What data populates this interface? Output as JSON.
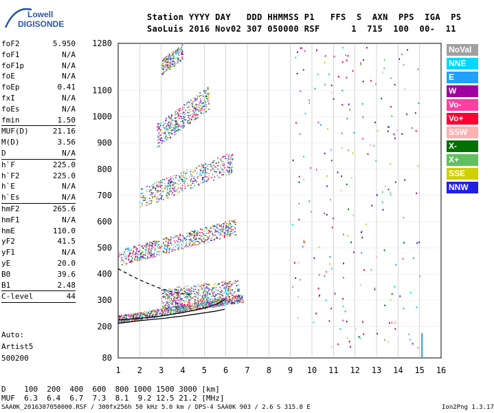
{
  "logo": {
    "top": "Lowell",
    "bottom": "DIGISONDE"
  },
  "header": {
    "row1": "Station YYYY DAY   DDD HHMMSS P1   FFS  S  AXN  PPS  IGA  PS",
    "row2": "SaoLuis 2016 Nov02 307 050000 RSF      1  715  100  00-  11"
  },
  "params_groups": [
    [
      {
        "name": "foF2",
        "value": "5.950"
      },
      {
        "name": "foF1",
        "value": "N/A"
      },
      {
        "name": "foF1p",
        "value": "N/A"
      },
      {
        "name": "foE",
        "value": "N/A"
      },
      {
        "name": "foEp",
        "value": "0.41"
      },
      {
        "name": "fxI",
        "value": "N/A"
      },
      {
        "name": "foEs",
        "value": "N/A"
      },
      {
        "name": "fmin",
        "value": "1.50"
      }
    ],
    [
      {
        "name": "MUF(D)",
        "value": "21.16"
      },
      {
        "name": "M(D)",
        "value": "3.56"
      },
      {
        "name": "D",
        "value": "N/A"
      }
    ],
    [
      {
        "name": "h`F",
        "value": "225.0"
      },
      {
        "name": "h`F2",
        "value": "225.0"
      },
      {
        "name": "h`E",
        "value": "N/A"
      },
      {
        "name": "h`Es",
        "value": "N/A"
      }
    ],
    [
      {
        "name": "hmF2",
        "value": "265.6"
      },
      {
        "name": "hmF1",
        "value": "N/A"
      },
      {
        "name": "hmE",
        "value": "110.0"
      },
      {
        "name": "yF2",
        "value": "41.5"
      },
      {
        "name": "yF1",
        "value": "N/A"
      },
      {
        "name": "yE",
        "value": "20.0"
      },
      {
        "name": "B0",
        "value": "39.6"
      },
      {
        "name": "B1",
        "value": "2.48"
      }
    ],
    [
      {
        "name": "C-level",
        "value": "44"
      }
    ]
  ],
  "auto": {
    "line1": "Auto:",
    "line2": "Artist5",
    "line3": "500200"
  },
  "muf_table": {
    "row1": "D    100  200  400  600  800 1000 1500 3000 [km]",
    "row2": "MUF  6.3  6.4  6.7  7.3  8.1  9.2 12.5 21.2 [MHz]"
  },
  "footer_left": "SAA0K_2016307050000.RSF / 300fx256h 50 kHz 5.0 km / DPS-4 SAA0K 903 / 2.6 S 315.8 E",
  "footer_right": "Ion2Png 1.3.17",
  "legend": [
    {
      "label": "NoVal",
      "color": "#a0a0a0"
    },
    {
      "label": "NNE",
      "color": "#00d8ff"
    },
    {
      "label": "E",
      "color": "#20a0ff"
    },
    {
      "label": "W",
      "color": "#a000a0"
    },
    {
      "label": "Vo-",
      "color": "#ff40a0"
    },
    {
      "label": "Vo+",
      "color": "#ff0030"
    },
    {
      "label": "SSW",
      "color": "#ffb0b0"
    },
    {
      "label": "X-",
      "color": "#007000"
    },
    {
      "label": "X+",
      "color": "#60c060"
    },
    {
      "label": "SSE",
      "color": "#d0d000"
    },
    {
      "label": "NNW",
      "color": "#2020e0"
    }
  ],
  "chart_data": {
    "type": "scatter",
    "xlim": [
      1,
      16
    ],
    "ylim": [
      80,
      1280
    ],
    "x_ticks": [
      1,
      2,
      3,
      4,
      5,
      6,
      7,
      8,
      9,
      10,
      11,
      12,
      13,
      14,
      15,
      16
    ],
    "y_ticks": [
      80,
      200,
      300,
      400,
      500,
      600,
      700,
      800,
      900,
      1000,
      1100,
      1280
    ],
    "series": [
      {
        "name": "",
        "style": "solid",
        "color": "#000000",
        "x": [
          1.0,
          1.5,
          2.0,
          2.5,
          3.0,
          3.5,
          4.0,
          4.5,
          5.0,
          5.5,
          5.8,
          5.95
        ],
        "y": [
          212,
          217,
          222,
          226,
          230,
          235,
          240,
          246,
          252,
          258,
          263,
          266
        ]
      },
      {
        "name": "",
        "style": "solid",
        "color": "#000000",
        "x": [
          1.0,
          2.0,
          3.0,
          4.0,
          5.0,
          5.5,
          5.8,
          5.95
        ],
        "y": [
          225,
          231,
          240,
          253,
          270,
          283,
          295,
          302
        ]
      },
      {
        "name": "",
        "style": "dashed",
        "color": "#000000",
        "x": [
          1.0,
          1.5,
          2.0,
          2.5,
          3.0,
          3.5,
          4.0,
          4.5
        ],
        "y": [
          420,
          398,
          378,
          360,
          344,
          332,
          325,
          322
        ]
      }
    ]
  }
}
